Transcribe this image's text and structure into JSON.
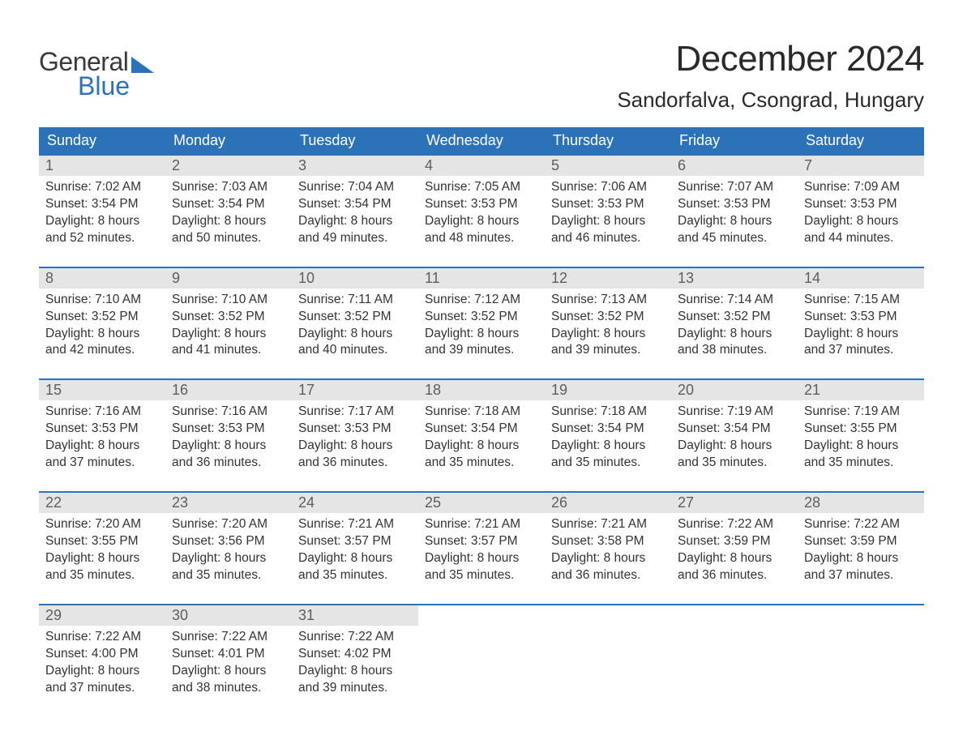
{
  "logo": {
    "general": "General",
    "blue": "Blue",
    "flag_color": "#2c72b8"
  },
  "title": "December 2024",
  "location": "Sandorfalva, Csongrad, Hungary",
  "colors": {
    "header_bg": "#2c72b8",
    "header_text": "#ffffff",
    "week_border": "#2c72b8",
    "daynum_bg": "#e5e5e5",
    "daynum_text": "#5e5e5e",
    "body_text": "#333333",
    "page_bg": "#ffffff"
  },
  "day_headers": [
    "Sunday",
    "Monday",
    "Tuesday",
    "Wednesday",
    "Thursday",
    "Friday",
    "Saturday"
  ],
  "weeks": [
    [
      {
        "n": "1",
        "sunrise": "7:02 AM",
        "sunset": "3:54 PM",
        "dl1": "Daylight: 8 hours",
        "dl2": "and 52 minutes."
      },
      {
        "n": "2",
        "sunrise": "7:03 AM",
        "sunset": "3:54 PM",
        "dl1": "Daylight: 8 hours",
        "dl2": "and 50 minutes."
      },
      {
        "n": "3",
        "sunrise": "7:04 AM",
        "sunset": "3:54 PM",
        "dl1": "Daylight: 8 hours",
        "dl2": "and 49 minutes."
      },
      {
        "n": "4",
        "sunrise": "7:05 AM",
        "sunset": "3:53 PM",
        "dl1": "Daylight: 8 hours",
        "dl2": "and 48 minutes."
      },
      {
        "n": "5",
        "sunrise": "7:06 AM",
        "sunset": "3:53 PM",
        "dl1": "Daylight: 8 hours",
        "dl2": "and 46 minutes."
      },
      {
        "n": "6",
        "sunrise": "7:07 AM",
        "sunset": "3:53 PM",
        "dl1": "Daylight: 8 hours",
        "dl2": "and 45 minutes."
      },
      {
        "n": "7",
        "sunrise": "7:09 AM",
        "sunset": "3:53 PM",
        "dl1": "Daylight: 8 hours",
        "dl2": "and 44 minutes."
      }
    ],
    [
      {
        "n": "8",
        "sunrise": "7:10 AM",
        "sunset": "3:52 PM",
        "dl1": "Daylight: 8 hours",
        "dl2": "and 42 minutes."
      },
      {
        "n": "9",
        "sunrise": "7:10 AM",
        "sunset": "3:52 PM",
        "dl1": "Daylight: 8 hours",
        "dl2": "and 41 minutes."
      },
      {
        "n": "10",
        "sunrise": "7:11 AM",
        "sunset": "3:52 PM",
        "dl1": "Daylight: 8 hours",
        "dl2": "and 40 minutes."
      },
      {
        "n": "11",
        "sunrise": "7:12 AM",
        "sunset": "3:52 PM",
        "dl1": "Daylight: 8 hours",
        "dl2": "and 39 minutes."
      },
      {
        "n": "12",
        "sunrise": "7:13 AM",
        "sunset": "3:52 PM",
        "dl1": "Daylight: 8 hours",
        "dl2": "and 39 minutes."
      },
      {
        "n": "13",
        "sunrise": "7:14 AM",
        "sunset": "3:52 PM",
        "dl1": "Daylight: 8 hours",
        "dl2": "and 38 minutes."
      },
      {
        "n": "14",
        "sunrise": "7:15 AM",
        "sunset": "3:53 PM",
        "dl1": "Daylight: 8 hours",
        "dl2": "and 37 minutes."
      }
    ],
    [
      {
        "n": "15",
        "sunrise": "7:16 AM",
        "sunset": "3:53 PM",
        "dl1": "Daylight: 8 hours",
        "dl2": "and 37 minutes."
      },
      {
        "n": "16",
        "sunrise": "7:16 AM",
        "sunset": "3:53 PM",
        "dl1": "Daylight: 8 hours",
        "dl2": "and 36 minutes."
      },
      {
        "n": "17",
        "sunrise": "7:17 AM",
        "sunset": "3:53 PM",
        "dl1": "Daylight: 8 hours",
        "dl2": "and 36 minutes."
      },
      {
        "n": "18",
        "sunrise": "7:18 AM",
        "sunset": "3:54 PM",
        "dl1": "Daylight: 8 hours",
        "dl2": "and 35 minutes."
      },
      {
        "n": "19",
        "sunrise": "7:18 AM",
        "sunset": "3:54 PM",
        "dl1": "Daylight: 8 hours",
        "dl2": "and 35 minutes."
      },
      {
        "n": "20",
        "sunrise": "7:19 AM",
        "sunset": "3:54 PM",
        "dl1": "Daylight: 8 hours",
        "dl2": "and 35 minutes."
      },
      {
        "n": "21",
        "sunrise": "7:19 AM",
        "sunset": "3:55 PM",
        "dl1": "Daylight: 8 hours",
        "dl2": "and 35 minutes."
      }
    ],
    [
      {
        "n": "22",
        "sunrise": "7:20 AM",
        "sunset": "3:55 PM",
        "dl1": "Daylight: 8 hours",
        "dl2": "and 35 minutes."
      },
      {
        "n": "23",
        "sunrise": "7:20 AM",
        "sunset": "3:56 PM",
        "dl1": "Daylight: 8 hours",
        "dl2": "and 35 minutes."
      },
      {
        "n": "24",
        "sunrise": "7:21 AM",
        "sunset": "3:57 PM",
        "dl1": "Daylight: 8 hours",
        "dl2": "and 35 minutes."
      },
      {
        "n": "25",
        "sunrise": "7:21 AM",
        "sunset": "3:57 PM",
        "dl1": "Daylight: 8 hours",
        "dl2": "and 35 minutes."
      },
      {
        "n": "26",
        "sunrise": "7:21 AM",
        "sunset": "3:58 PM",
        "dl1": "Daylight: 8 hours",
        "dl2": "and 36 minutes."
      },
      {
        "n": "27",
        "sunrise": "7:22 AM",
        "sunset": "3:59 PM",
        "dl1": "Daylight: 8 hours",
        "dl2": "and 36 minutes."
      },
      {
        "n": "28",
        "sunrise": "7:22 AM",
        "sunset": "3:59 PM",
        "dl1": "Daylight: 8 hours",
        "dl2": "and 37 minutes."
      }
    ],
    [
      {
        "n": "29",
        "sunrise": "7:22 AM",
        "sunset": "4:00 PM",
        "dl1": "Daylight: 8 hours",
        "dl2": "and 37 minutes."
      },
      {
        "n": "30",
        "sunrise": "7:22 AM",
        "sunset": "4:01 PM",
        "dl1": "Daylight: 8 hours",
        "dl2": "and 38 minutes."
      },
      {
        "n": "31",
        "sunrise": "7:22 AM",
        "sunset": "4:02 PM",
        "dl1": "Daylight: 8 hours",
        "dl2": "and 39 minutes."
      },
      null,
      null,
      null,
      null
    ]
  ],
  "labels": {
    "sunrise_prefix": "Sunrise: ",
    "sunset_prefix": "Sunset: "
  }
}
